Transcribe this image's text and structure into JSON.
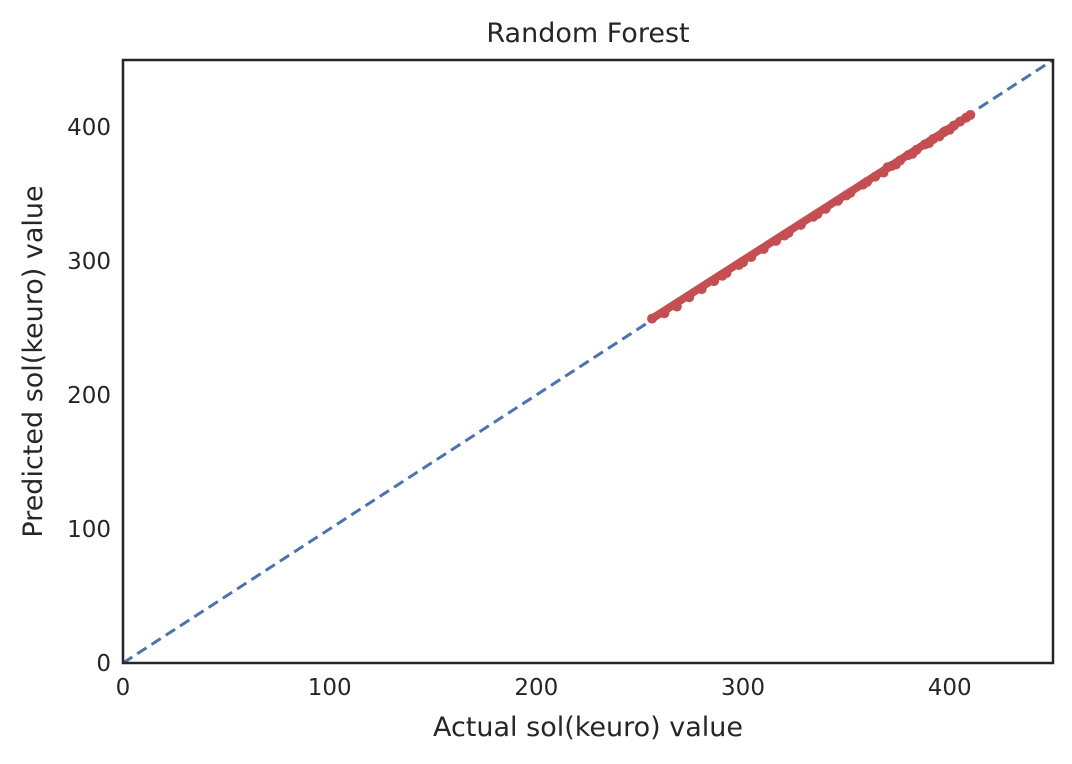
{
  "chart_data": {
    "type": "scatter",
    "title": "Random Forest",
    "xlabel": "Actual sol(keuro) value",
    "ylabel": "Predicted sol(keuro) value",
    "xlim": [
      0,
      450
    ],
    "ylim": [
      0,
      450
    ],
    "xticks": [
      0,
      100,
      200,
      300,
      400
    ],
    "yticks": [
      0,
      100,
      200,
      300,
      400
    ],
    "grid": false,
    "colors": {
      "points": "#c44e52",
      "reference": "#4c72b0",
      "frame": "#262626"
    },
    "reference_line": {
      "style": "dashed",
      "from": [
        0,
        0
      ],
      "to": [
        450,
        450
      ]
    },
    "series": [
      {
        "marker": "dot",
        "points": [
          [
            256,
            257
          ],
          [
            262,
            261
          ],
          [
            268,
            266
          ],
          [
            274,
            273
          ],
          [
            280,
            279
          ],
          [
            286,
            285
          ],
          [
            292,
            291
          ],
          [
            298,
            297
          ],
          [
            304,
            303
          ],
          [
            310,
            309
          ],
          [
            316,
            315
          ],
          [
            322,
            321
          ],
          [
            328,
            327
          ],
          [
            334,
            333
          ],
          [
            340,
            339
          ],
          [
            346,
            345
          ],
          [
            352,
            351
          ],
          [
            358,
            357
          ],
          [
            364,
            363
          ],
          [
            368,
            366
          ],
          [
            370,
            370
          ],
          [
            372,
            371
          ],
          [
            376,
            375
          ],
          [
            380,
            379
          ],
          [
            384,
            383
          ],
          [
            388,
            387
          ],
          [
            392,
            391
          ],
          [
            395,
            393
          ],
          [
            397,
            396
          ],
          [
            400,
            398
          ],
          [
            402,
            401
          ],
          [
            405,
            404
          ],
          [
            408,
            407
          ],
          [
            410,
            409
          ],
          [
            290,
            289
          ],
          [
            300,
            299
          ],
          [
            320,
            319
          ],
          [
            336,
            335
          ],
          [
            350,
            349
          ],
          [
            360,
            359
          ],
          [
            374,
            372
          ],
          [
            382,
            380
          ],
          [
            390,
            388
          ],
          [
            398,
            397
          ]
        ]
      }
    ]
  }
}
